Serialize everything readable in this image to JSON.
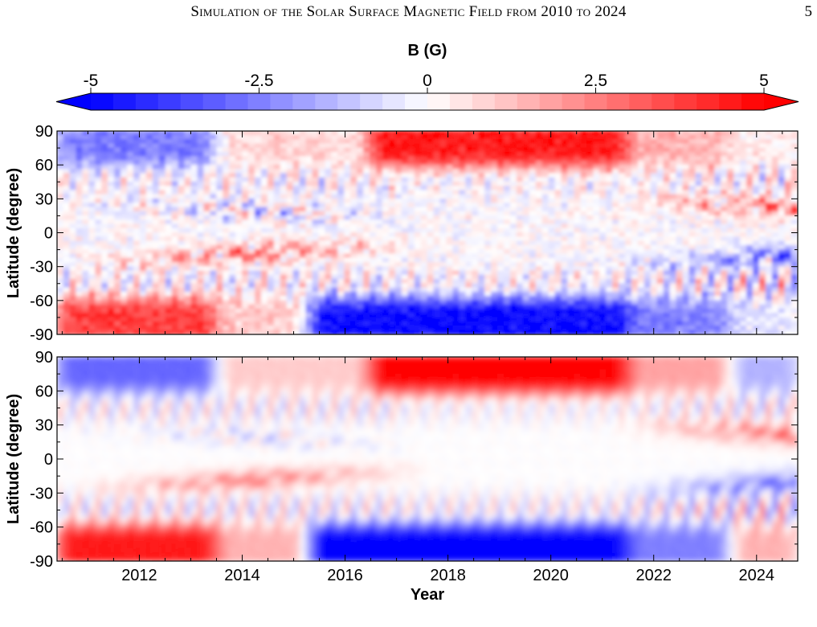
{
  "header": {
    "running_title": "Simulation of the Solar Surface Magnetic Field from 2010 to 2024",
    "page_number": "5"
  },
  "colors": {
    "negative": "#0000ff",
    "zero": "#ffffff",
    "positive": "#ff0000"
  },
  "chart_data": [
    {
      "type": "colorbar",
      "title": "B (G)",
      "range": [
        -5,
        5
      ],
      "ticks": [
        -5,
        -2.5,
        0,
        2.5,
        5
      ],
      "tick_labels": [
        "-5",
        "-2.5",
        "0",
        "2.5",
        "5"
      ],
      "colormap": "blue-white-red",
      "extend": "both"
    },
    {
      "type": "heatmap",
      "panel": "top",
      "xlabel": "",
      "ylabel": "Latitude (degree)",
      "xlim": [
        2010.4,
        2024.8
      ],
      "ylim": [
        -90,
        90
      ],
      "yticks": [
        -90,
        -60,
        -30,
        0,
        30,
        60,
        90
      ],
      "ytick_labels": [
        "-90",
        "-60",
        "-30",
        "0",
        "30",
        "60",
        "90"
      ],
      "features": {
        "north_polar": [
          {
            "t_start": 2010.4,
            "t_end": 2013.5,
            "value": -2.5
          },
          {
            "t_start": 2013.5,
            "t_end": 2016.5,
            "value": 0.8
          },
          {
            "t_start": 2016.5,
            "t_end": 2021.5,
            "value": 4.5
          },
          {
            "t_start": 2021.5,
            "t_end": 2023.5,
            "value": 1.5
          },
          {
            "t_start": 2023.5,
            "t_end": 2024.8,
            "value": 0.3
          }
        ],
        "south_polar": [
          {
            "t_start": 2010.4,
            "t_end": 2013.5,
            "value": 3.8
          },
          {
            "t_start": 2013.5,
            "t_end": 2015.3,
            "value": 1.0
          },
          {
            "t_start": 2015.3,
            "t_end": 2021.5,
            "value": -4.8
          },
          {
            "t_start": 2021.5,
            "t_end": 2023.5,
            "value": -2.5
          },
          {
            "t_start": 2023.5,
            "t_end": 2024.8,
            "value": -0.5
          }
        ]
      }
    },
    {
      "type": "heatmap",
      "panel": "bottom",
      "xlabel": "Year",
      "ylabel": "Latitude (degree)",
      "xlim": [
        2010.4,
        2024.8
      ],
      "ylim": [
        -90,
        90
      ],
      "xticks": [
        2012,
        2014,
        2016,
        2018,
        2020,
        2022,
        2024
      ],
      "xtick_labels": [
        "2012",
        "2014",
        "2016",
        "2018",
        "2020",
        "2022",
        "2024"
      ],
      "yticks": [
        -90,
        -60,
        -30,
        0,
        30,
        60,
        90
      ],
      "ytick_labels": [
        "-90",
        "-60",
        "-30",
        "0",
        "30",
        "60",
        "90"
      ],
      "features": {
        "north_polar": [
          {
            "t_start": 2010.4,
            "t_end": 2013.5,
            "value": -3.0
          },
          {
            "t_start": 2013.5,
            "t_end": 2016.5,
            "value": 1.0
          },
          {
            "t_start": 2016.5,
            "t_end": 2021.5,
            "value": 5.0
          },
          {
            "t_start": 2021.5,
            "t_end": 2023.5,
            "value": 1.8
          },
          {
            "t_start": 2023.5,
            "t_end": 2024.8,
            "value": -1.5
          }
        ],
        "south_polar": [
          {
            "t_start": 2010.4,
            "t_end": 2013.5,
            "value": 4.5
          },
          {
            "t_start": 2013.5,
            "t_end": 2015.3,
            "value": 1.5
          },
          {
            "t_start": 2015.3,
            "t_end": 2021.5,
            "value": -5.0
          },
          {
            "t_start": 2021.5,
            "t_end": 2023.5,
            "value": -2.5
          },
          {
            "t_start": 2023.5,
            "t_end": 2024.8,
            "value": 1.5
          }
        ]
      }
    }
  ]
}
